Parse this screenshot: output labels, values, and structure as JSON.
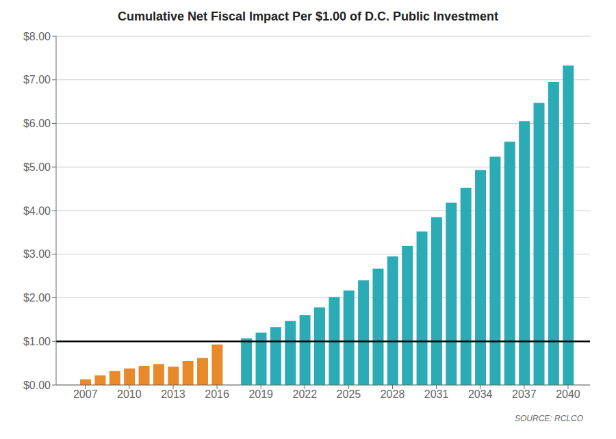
{
  "chart_data": {
    "type": "bar",
    "title": "Cumulative Net Fiscal Impact Per $1.00 of D.C. Public Investment",
    "annotation": "SOURCE: RCLCO",
    "x": [
      2007,
      2008,
      2009,
      2010,
      2011,
      2012,
      2013,
      2014,
      2015,
      2016,
      2018,
      2019,
      2020,
      2021,
      2022,
      2023,
      2024,
      2025,
      2026,
      2027,
      2028,
      2029,
      2030,
      2031,
      2032,
      2033,
      2034,
      2035,
      2036,
      2037,
      2038,
      2039,
      2040
    ],
    "values": [
      0.13,
      0.22,
      0.32,
      0.38,
      0.44,
      0.48,
      0.42,
      0.55,
      0.62,
      0.93,
      1.07,
      1.2,
      1.33,
      1.47,
      1.6,
      1.78,
      2.02,
      2.17,
      2.4,
      2.67,
      2.95,
      3.19,
      3.52,
      3.85,
      4.18,
      4.52,
      4.93,
      5.24,
      5.58,
      6.05,
      6.47,
      6.95,
      7.33
    ],
    "colors": [
      "#E8892A",
      "#E8892A",
      "#E8892A",
      "#E8892A",
      "#E8892A",
      "#E8892A",
      "#E8892A",
      "#E8892A",
      "#E8892A",
      "#E8892A",
      "#2AABB5",
      "#2AABB5",
      "#2AABB5",
      "#2AABB5",
      "#2AABB5",
      "#2AABB5",
      "#2AABB5",
      "#2AABB5",
      "#2AABB5",
      "#2AABB5",
      "#2AABB5",
      "#2AABB5",
      "#2AABB5",
      "#2AABB5",
      "#2AABB5",
      "#2AABB5",
      "#2AABB5",
      "#2AABB5",
      "#2AABB5",
      "#2AABB5",
      "#2AABB5",
      "#2AABB5",
      "#2AABB5"
    ],
    "reference_line": {
      "y": 1.0,
      "color": "#000000"
    },
    "xlim": [
      2005.0,
      2041.5
    ],
    "xticks": [
      2007,
      2010,
      2013,
      2016,
      2019,
      2022,
      2025,
      2028,
      2031,
      2034,
      2037,
      2040
    ],
    "ylim": [
      0.0,
      8.0
    ],
    "yticks": [
      {
        "value": 0.0,
        "label": "$0.00"
      },
      {
        "value": 1.0,
        "label": "$1.00"
      },
      {
        "value": 2.0,
        "label": "$2.00"
      },
      {
        "value": 3.0,
        "label": "$3.00"
      },
      {
        "value": 4.0,
        "label": "$4.00"
      },
      {
        "value": 5.0,
        "label": "$5.00"
      },
      {
        "value": 6.0,
        "label": "$6.00"
      },
      {
        "value": 7.0,
        "label": "$7.00"
      },
      {
        "value": 8.0,
        "label": "$8.00"
      }
    ],
    "grid": "y"
  }
}
